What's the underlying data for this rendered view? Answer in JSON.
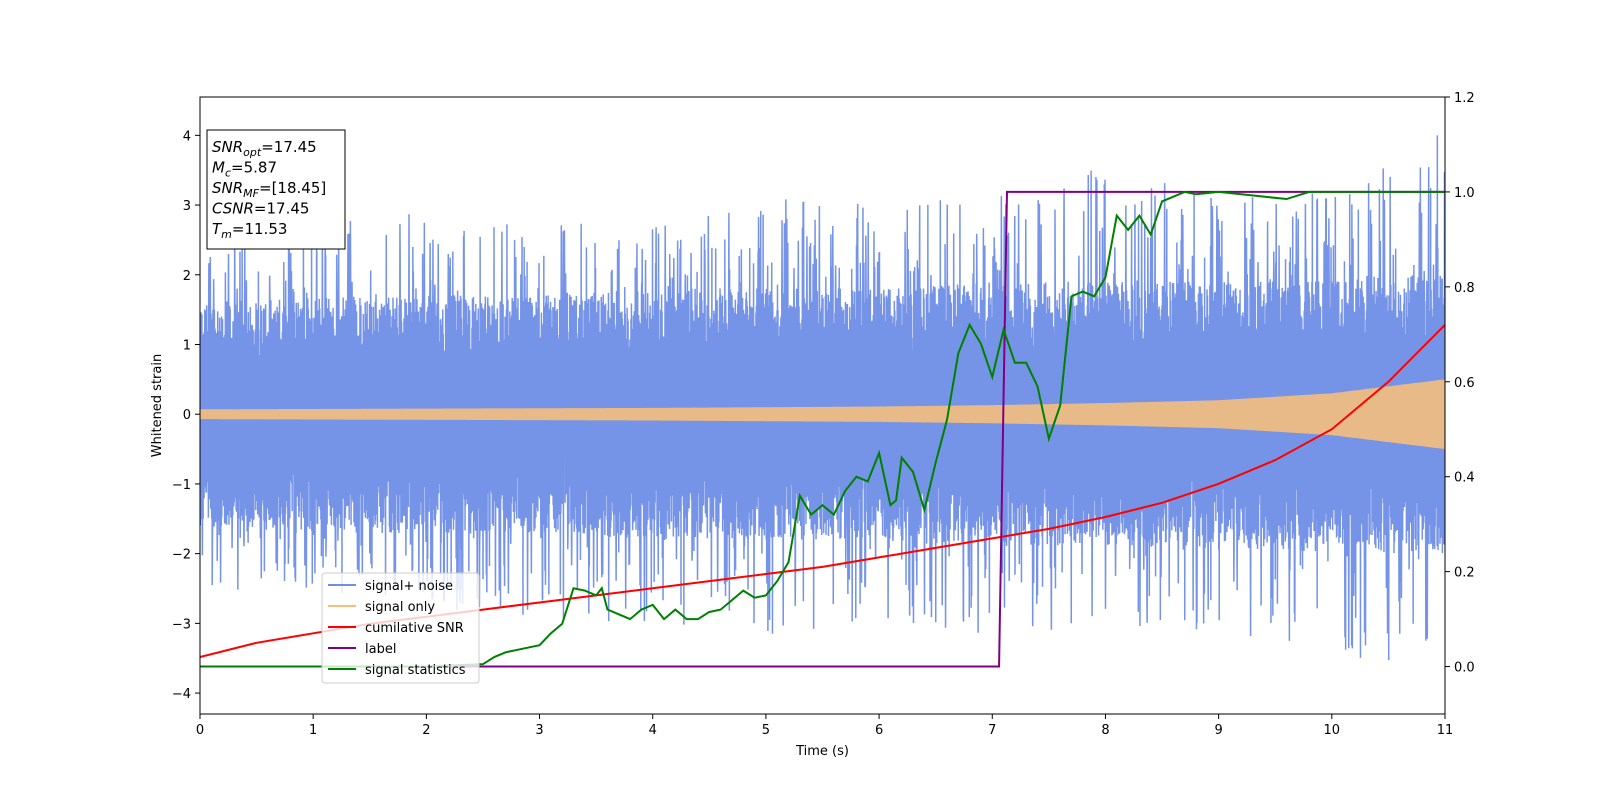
{
  "chart_data": {
    "type": "line",
    "xlabel": "Time (s)",
    "ylabel": "Whitened strain",
    "ylabel_right": "",
    "xlim": [
      0,
      11
    ],
    "ylim": [
      -4.3,
      4.55
    ],
    "ylim_right": [
      -0.1,
      1.2
    ],
    "xticks": [
      0,
      1,
      2,
      3,
      4,
      5,
      6,
      7,
      8,
      9,
      10,
      11
    ],
    "yticks": [
      -4,
      -3,
      -2,
      -1,
      0,
      1,
      2,
      3,
      4
    ],
    "yticks_right": [
      0.0,
      0.2,
      0.4,
      0.6,
      0.8,
      1.0,
      1.2
    ],
    "yticks_right_labels": [
      "0.0",
      "0.2",
      "0.4",
      "0.6",
      "0.8",
      "1.0",
      "1.2"
    ],
    "grid": false,
    "legend_position": "bottom-left",
    "annotation": {
      "lines": [
        {
          "base": "SNR",
          "sub": "opt",
          "rest": "=17.45"
        },
        {
          "base": "M",
          "sub": "c",
          "rest": "=5.87"
        },
        {
          "base": "SNR",
          "sub": "MF",
          "rest": "=[18.45]"
        },
        {
          "base": "CSNR",
          "sub": "",
          "rest": "=17.45"
        },
        {
          "base": "T",
          "sub": "m",
          "rest": "=11.53"
        }
      ]
    },
    "noise_envelope": {
      "x": [
        0,
        1,
        2,
        3,
        4,
        5,
        6,
        7,
        8,
        9,
        10,
        11
      ],
      "upper": [
        2.6,
        2.8,
        2.9,
        2.8,
        2.8,
        3.1,
        3.0,
        3.2,
        3.6,
        3.1,
        3.2,
        4.15
      ],
      "lower": [
        -2.5,
        -2.6,
        -2.8,
        -3.0,
        -3.0,
        -3.2,
        -3.0,
        -3.2,
        -3.1,
        -3.2,
        -3.6,
        -3.5
      ],
      "body_upper": [
        1.6,
        1.7,
        1.7,
        1.7,
        1.8,
        1.8,
        1.8,
        1.9,
        1.9,
        1.9,
        2.0,
        2.0
      ],
      "body_lower": [
        -1.6,
        -1.7,
        -1.7,
        -1.7,
        -1.8,
        -1.8,
        -1.8,
        -1.9,
        -1.9,
        -1.9,
        -2.0,
        -2.0
      ]
    },
    "signal_envelope": {
      "x": [
        0,
        1,
        2,
        3,
        4,
        5,
        6,
        7,
        8,
        9,
        10,
        11
      ],
      "amplitude": [
        0.07,
        0.075,
        0.08,
        0.085,
        0.09,
        0.1,
        0.11,
        0.13,
        0.16,
        0.2,
        0.3,
        0.5
      ]
    },
    "series": [
      {
        "name": "signal+ noise",
        "color": "#6f8ee6",
        "axis": "left"
      },
      {
        "name": "signal only",
        "color": "#f5be7c",
        "axis": "left"
      },
      {
        "name": "cumilative SNR",
        "color": "#ff0000",
        "axis": "right",
        "x": [
          0,
          0.5,
          1,
          1.5,
          2,
          2.5,
          3,
          3.5,
          4,
          4.5,
          5,
          5.5,
          6,
          6.5,
          7,
          7.5,
          8,
          8.5,
          9,
          9.5,
          10,
          10.5,
          11
        ],
        "y": [
          0.02,
          0.05,
          0.07,
          0.09,
          0.105,
          0.12,
          0.135,
          0.15,
          0.165,
          0.18,
          0.195,
          0.21,
          0.23,
          0.25,
          0.27,
          0.29,
          0.315,
          0.345,
          0.385,
          0.435,
          0.5,
          0.6,
          0.72
        ]
      },
      {
        "name": "label",
        "color": "#800080",
        "axis": "right",
        "x": [
          0,
          7.06,
          7.13,
          11
        ],
        "y": [
          0,
          0,
          1,
          1
        ]
      },
      {
        "name": "signal statistics",
        "color": "#008000",
        "axis": "right",
        "x": [
          0,
          1,
          2,
          2.5,
          2.6,
          2.7,
          2.8,
          2.9,
          3.0,
          3.1,
          3.2,
          3.3,
          3.4,
          3.5,
          3.55,
          3.6,
          3.7,
          3.8,
          3.9,
          4.0,
          4.1,
          4.2,
          4.3,
          4.4,
          4.5,
          4.6,
          4.7,
          4.8,
          4.9,
          5.0,
          5.1,
          5.2,
          5.3,
          5.4,
          5.5,
          5.6,
          5.7,
          5.8,
          5.9,
          6.0,
          6.1,
          6.15,
          6.2,
          6.3,
          6.4,
          6.5,
          6.6,
          6.7,
          6.8,
          6.9,
          7.0,
          7.1,
          7.2,
          7.3,
          7.4,
          7.5,
          7.6,
          7.7,
          7.8,
          7.9,
          8.0,
          8.1,
          8.2,
          8.3,
          8.4,
          8.5,
          8.6,
          8.7,
          8.8,
          9.0,
          9.2,
          9.4,
          9.6,
          9.8,
          10.0,
          10.5,
          11
        ],
        "y": [
          0.0,
          0.0,
          0.0,
          0.005,
          0.02,
          0.03,
          0.035,
          0.04,
          0.045,
          0.07,
          0.09,
          0.165,
          0.16,
          0.15,
          0.165,
          0.12,
          0.11,
          0.1,
          0.12,
          0.13,
          0.1,
          0.12,
          0.1,
          0.1,
          0.115,
          0.12,
          0.14,
          0.16,
          0.145,
          0.15,
          0.18,
          0.22,
          0.36,
          0.32,
          0.34,
          0.32,
          0.37,
          0.4,
          0.39,
          0.45,
          0.34,
          0.35,
          0.44,
          0.41,
          0.33,
          0.43,
          0.52,
          0.66,
          0.72,
          0.68,
          0.61,
          0.71,
          0.64,
          0.64,
          0.59,
          0.48,
          0.55,
          0.78,
          0.79,
          0.78,
          0.82,
          0.95,
          0.92,
          0.95,
          0.91,
          0.98,
          0.99,
          1.0,
          0.995,
          1.0,
          0.995,
          0.99,
          0.985,
          1.0,
          1.0,
          1.0,
          1.0
        ]
      }
    ]
  }
}
